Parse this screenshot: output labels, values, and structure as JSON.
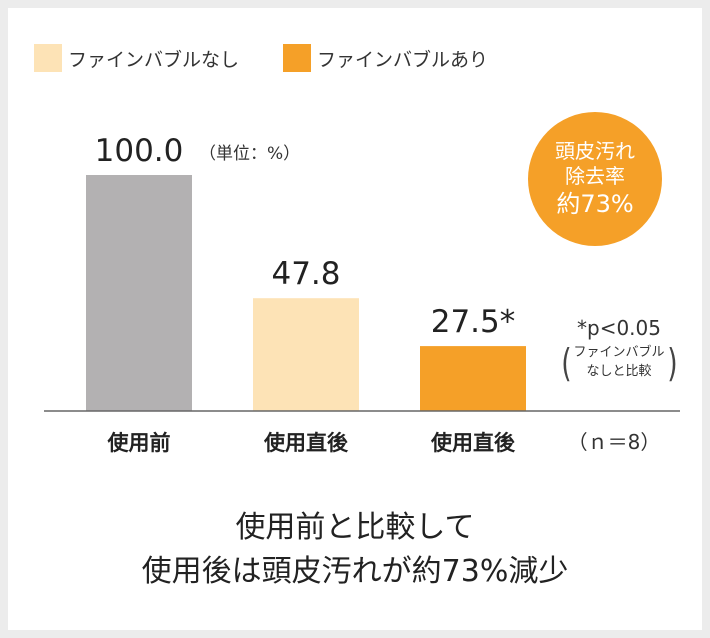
{
  "legend": [
    {
      "label": "ファインバブルなし",
      "color": "#fde3b6"
    },
    {
      "label": "ファインバブルあり",
      "color": "#f5a028"
    }
  ],
  "chart_data": {
    "type": "bar",
    "categories": [
      "使用前",
      "使用直後",
      "使用直後"
    ],
    "values": [
      100.0,
      47.8,
      27.5
    ],
    "value_labels": [
      "100.0",
      "47.8",
      "27.5*"
    ],
    "colors": [
      "#b3b1b2",
      "#fde3b6",
      "#f5a028"
    ],
    "unit_note": "（単位：%）",
    "n_label": "（ｎ＝8）",
    "ylim": [
      0,
      100
    ]
  },
  "badge": {
    "line1": "頭皮汚れ",
    "line2": "除去率",
    "line3": "約73%"
  },
  "significance": {
    "p": "*p<0.05",
    "line1": "ファインバブル",
    "line2": "なしと比較"
  },
  "conclusion": {
    "line1": "使用前と比較して",
    "line2": "使用後は頭皮汚れが約73%減少"
  }
}
